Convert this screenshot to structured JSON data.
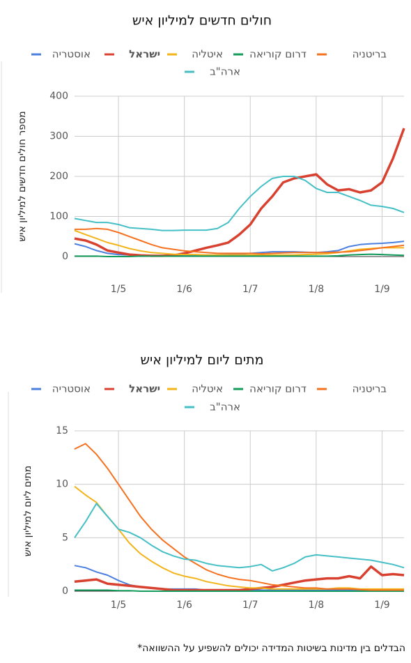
{
  "chart_data": [
    {
      "type": "line",
      "title": "חולים חדשים למיליון איש",
      "y_label": "מספר חולים חדשים למיליון איש",
      "categories": [
        null,
        null,
        null,
        null,
        "1/5",
        null,
        null,
        null,
        null,
        null,
        "1/6",
        null,
        null,
        null,
        null,
        null,
        "1/7",
        null,
        null,
        null,
        null,
        null,
        "1/8",
        null,
        null,
        null,
        null,
        null,
        "1/9",
        null,
        null
      ],
      "ylim": [
        0,
        400
      ],
      "yticks": [
        0,
        100,
        200,
        300,
        400
      ],
      "grid": true,
      "series": [
        {
          "name": "אוסטריה",
          "color": "#4a7fe0",
          "values": [
            32,
            25,
            15,
            8,
            5,
            4,
            3,
            2,
            2,
            2,
            3,
            3,
            4,
            4,
            5,
            6,
            8,
            10,
            12,
            12,
            12,
            11,
            10,
            12,
            15,
            25,
            30,
            32,
            33,
            35,
            38
          ]
        },
        {
          "name": "ישראל",
          "color": "#d8412f",
          "highlight": true,
          "values": [
            45,
            40,
            30,
            15,
            10,
            5,
            3,
            2,
            2,
            3,
            8,
            15,
            22,
            28,
            35,
            55,
            80,
            120,
            150,
            185,
            195,
            200,
            205,
            180,
            165,
            168,
            160,
            165,
            185,
            245,
            320
          ]
        },
        {
          "name": "איטליה",
          "color": "#f2b419",
          "values": [
            65,
            55,
            45,
            35,
            28,
            20,
            14,
            10,
            8,
            6,
            5,
            5,
            4,
            4,
            4,
            4,
            4,
            4,
            4,
            4,
            4,
            5,
            6,
            7,
            10,
            14,
            18,
            20,
            22,
            22,
            22
          ]
        },
        {
          "name": "דרום קוריאה",
          "color": "#129b5a",
          "values": [
            1,
            1,
            1,
            0,
            0,
            0,
            1,
            1,
            1,
            1,
            1,
            1,
            1,
            1,
            1,
            1,
            1,
            1,
            1,
            1,
            1,
            1,
            1,
            1,
            2,
            4,
            5,
            6,
            5,
            4,
            3
          ]
        },
        {
          "name": "בריטניה",
          "color": "#f5711f",
          "values": [
            68,
            68,
            70,
            68,
            60,
            50,
            40,
            30,
            22,
            18,
            14,
            12,
            10,
            8,
            8,
            8,
            8,
            7,
            8,
            9,
            10,
            10,
            10,
            10,
            11,
            12,
            15,
            18,
            22,
            25,
            28
          ]
        },
        {
          "name": "ארה\"ב",
          "color": "#44bfc6",
          "values": [
            95,
            90,
            85,
            85,
            80,
            72,
            70,
            68,
            65,
            65,
            66,
            66,
            66,
            70,
            85,
            120,
            150,
            175,
            195,
            200,
            200,
            190,
            170,
            160,
            160,
            150,
            140,
            128,
            125,
            120,
            110
          ]
        }
      ]
    },
    {
      "type": "line",
      "title": "מתים ליום למיליון איש",
      "y_label": "מתים ליום למיליון איש",
      "categories": [
        null,
        null,
        null,
        null,
        "1/5",
        null,
        null,
        null,
        null,
        null,
        "1/6",
        null,
        null,
        null,
        null,
        null,
        "1/7",
        null,
        null,
        null,
        null,
        null,
        "1/8",
        null,
        null,
        null,
        null,
        null,
        "1/9",
        null,
        null
      ],
      "ylim": [
        0,
        15
      ],
      "yticks": [
        0,
        5,
        10,
        15
      ],
      "grid": true,
      "series": [
        {
          "name": "אוסטריה",
          "color": "#4a7fe0",
          "values": [
            2.4,
            2.2,
            1.8,
            1.5,
            1,
            0.6,
            0.4,
            0.3,
            0.2,
            0.2,
            0.2,
            0.2,
            0.1,
            0.1,
            0.1,
            0.1,
            0.1,
            0.1,
            0.1,
            0.1,
            0.1,
            0.1,
            0.1,
            0.1,
            0.1,
            0.1,
            0.1,
            0.1,
            0.1,
            0.1,
            0.1
          ]
        },
        {
          "name": "ישראל",
          "color": "#d8412f",
          "highlight": true,
          "values": [
            0.9,
            1,
            1.1,
            0.7,
            0.6,
            0.5,
            0.4,
            0.3,
            0.2,
            0.1,
            0.1,
            0.1,
            0.1,
            0.1,
            0.1,
            0.1,
            0.2,
            0.3,
            0.4,
            0.6,
            0.8,
            1,
            1.1,
            1.2,
            1.2,
            1.4,
            1.2,
            2.3,
            1.5,
            1.6,
            1.5
          ]
        },
        {
          "name": "איטליה",
          "color": "#f2b419",
          "values": [
            9.8,
            9,
            8.3,
            7,
            5.8,
            4.5,
            3.5,
            2.8,
            2.2,
            1.7,
            1.4,
            1.2,
            0.9,
            0.7,
            0.5,
            0.4,
            0.3,
            0.3,
            0.2,
            0.2,
            0.2,
            0.2,
            0.2,
            0.2,
            0.3,
            0.3,
            0.2,
            0.2,
            0.2,
            0.2,
            0.2
          ]
        },
        {
          "name": "דרום קוריאה",
          "color": "#129b5a",
          "values": [
            0.1,
            0.1,
            0.1,
            0.1,
            0.05,
            0.05,
            0,
            0,
            0,
            0,
            0,
            0,
            0,
            0,
            0,
            0,
            0,
            0,
            0,
            0,
            0,
            0,
            0,
            0,
            0,
            0,
            0,
            0,
            0,
            0,
            0
          ]
        },
        {
          "name": "בריטניה",
          "color": "#f5711f",
          "values": [
            13.3,
            13.8,
            12.8,
            11.5,
            10,
            8.5,
            7,
            5.8,
            4.8,
            4,
            3.2,
            2.6,
            2,
            1.6,
            1.3,
            1.1,
            1,
            0.8,
            0.6,
            0.5,
            0.4,
            0.3,
            0.3,
            0.2,
            0.2,
            0.2,
            0.15,
            0.1,
            0.1,
            0.1,
            0.1
          ]
        },
        {
          "name": "ארה\"ב",
          "color": "#44bfc6",
          "values": [
            5,
            6.5,
            8.2,
            7,
            5.8,
            5.5,
            5,
            4.3,
            3.7,
            3.3,
            3,
            2.9,
            2.6,
            2.4,
            2.3,
            2.2,
            2.3,
            2.5,
            1.9,
            2.2,
            2.6,
            3.2,
            3.4,
            3.3,
            3.2,
            3.1,
            3,
            2.9,
            2.7,
            2.5,
            2.2
          ]
        }
      ]
    }
  ],
  "footnote": "*הבדלים בין מדינות בשיטות המדידה יכולים להשפיע על ההשוואה"
}
